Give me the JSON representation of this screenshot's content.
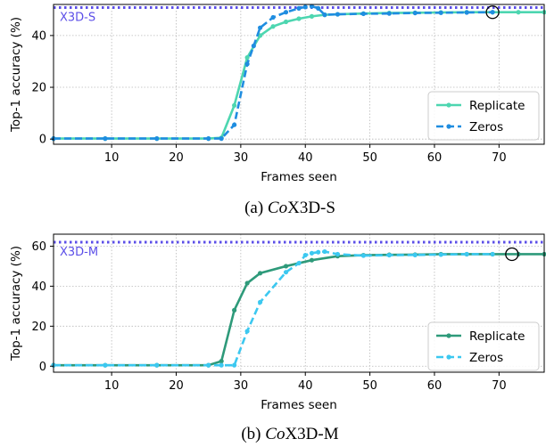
{
  "chart_data": [
    {
      "type": "line",
      "caption_prefix": "(a) ",
      "caption_italic": "Co",
      "caption_rest": "X3D-S",
      "xlabel": "Frames seen",
      "ylabel": "Top-1 accuracy (%)",
      "xlim": [
        1,
        77
      ],
      "ylim": [
        -2,
        52
      ],
      "xticks": [
        10,
        20,
        30,
        40,
        50,
        60,
        70
      ],
      "yticks": [
        0,
        20,
        40
      ],
      "grid": true,
      "legend_position": "bottom-right",
      "reference": {
        "label": "X3D-S",
        "value": 50.8,
        "color": "#5b4ee8"
      },
      "marker_circle": {
        "x": 69,
        "y": 49
      },
      "series": [
        {
          "name": "Replicate",
          "color": "#4dd6b0",
          "style": "solid",
          "x": [
            1,
            9,
            17,
            25,
            27,
            29,
            31,
            33,
            35,
            37,
            39,
            41,
            43,
            45,
            49,
            53,
            57,
            61,
            65,
            69,
            73,
            77
          ],
          "y": [
            0.2,
            0.2,
            0.2,
            0.2,
            0.5,
            13,
            31.5,
            40,
            43.5,
            45.3,
            46.5,
            47.4,
            48,
            48.2,
            48.5,
            48.7,
            48.8,
            48.9,
            49,
            49,
            49,
            49
          ]
        },
        {
          "name": "Zeros",
          "color": "#1f8de0",
          "style": "dashed",
          "x": [
            1,
            9,
            17,
            25,
            27,
            29,
            31,
            32,
            33,
            35,
            37,
            39,
            40,
            41,
            42,
            43,
            45,
            49,
            53,
            57,
            61,
            65,
            69
          ],
          "y": [
            0.2,
            0.2,
            0.2,
            0.2,
            0.2,
            5.5,
            29,
            36,
            43,
            47,
            49,
            50.5,
            51,
            51.3,
            50.5,
            48,
            48.2,
            48.4,
            48.5,
            48.7,
            48.8,
            48.9,
            49
          ]
        }
      ]
    },
    {
      "type": "line",
      "caption_prefix": "(b) ",
      "caption_italic": "Co",
      "caption_rest": "X3D-M",
      "xlabel": "Frames seen",
      "ylabel": "Top-1 accuracy (%)",
      "xlim": [
        1,
        77
      ],
      "ylim": [
        -3,
        66
      ],
      "xticks": [
        10,
        20,
        30,
        40,
        50,
        60,
        70
      ],
      "yticks": [
        0,
        20,
        40,
        60
      ],
      "grid": true,
      "legend_position": "bottom-right",
      "reference": {
        "label": "X3D-M",
        "value": 62,
        "color": "#5b4ee8"
      },
      "marker_circle": {
        "x": 72,
        "y": 56
      },
      "series": [
        {
          "name": "Replicate",
          "color": "#2e9a7a",
          "style": "solid",
          "x": [
            1,
            9,
            17,
            25,
            27,
            29,
            31,
            33,
            37,
            41,
            45,
            49,
            53,
            57,
            61,
            65,
            69,
            73,
            77
          ],
          "y": [
            0.5,
            0.5,
            0.5,
            0.5,
            2.5,
            28,
            41.5,
            46.5,
            50,
            53,
            55,
            55.5,
            55.7,
            55.8,
            56,
            56,
            56,
            56,
            56
          ]
        },
        {
          "name": "Zeros",
          "color": "#3cc8f0",
          "style": "dashed",
          "x": [
            1,
            9,
            17,
            25,
            27,
            29,
            31,
            33,
            37,
            39,
            40,
            41,
            42,
            43,
            45,
            49,
            53,
            57,
            61,
            65,
            69
          ],
          "y": [
            0.5,
            0.5,
            0.5,
            0.5,
            0.5,
            0.5,
            17.5,
            32,
            47,
            51.5,
            55.5,
            56.5,
            57,
            57.3,
            56,
            55.3,
            55.5,
            55.6,
            55.8,
            56,
            56
          ]
        }
      ]
    }
  ]
}
